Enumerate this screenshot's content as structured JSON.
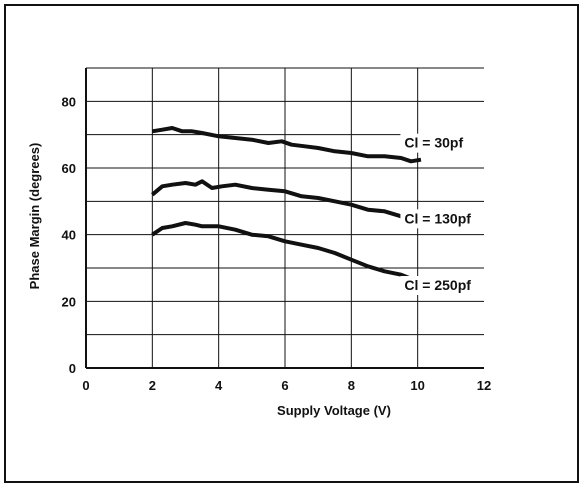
{
  "chart_data": {
    "type": "line",
    "title": "",
    "xlabel": "Supply Voltage (V)",
    "ylabel": "Phase Margin (degrees)",
    "xlim": [
      0,
      12
    ],
    "ylim": [
      0,
      90
    ],
    "xticks": [
      0,
      2,
      4,
      6,
      8,
      10,
      12
    ],
    "yticks": [
      0,
      20,
      40,
      60,
      80
    ],
    "grid": true,
    "series": [
      {
        "name": "Cl = 30pf",
        "x": [
          2.0,
          2.3,
          2.6,
          2.9,
          3.2,
          3.5,
          4.0,
          4.5,
          5.0,
          5.5,
          5.9,
          6.2,
          6.6,
          7.0,
          7.5,
          8.0,
          8.5,
          9.0,
          9.5,
          9.8,
          10.1
        ],
        "y": [
          71,
          71.5,
          72,
          71,
          71,
          70.5,
          69.5,
          69,
          68.5,
          67.5,
          68,
          67,
          66.5,
          66,
          65,
          64.5,
          63.5,
          63.5,
          63,
          62,
          62.5
        ]
      },
      {
        "name": "Cl = 130pf",
        "x": [
          2.0,
          2.3,
          2.6,
          3.0,
          3.3,
          3.5,
          3.8,
          4.1,
          4.5,
          5.0,
          5.5,
          6.0,
          6.5,
          7.0,
          7.5,
          8.0,
          8.5,
          9.0,
          9.5,
          10.0,
          10.1
        ],
        "y": [
          52,
          54.5,
          55,
          55.5,
          55,
          56,
          54,
          54.5,
          55,
          54,
          53.5,
          53,
          51.5,
          51,
          50,
          49,
          47.5,
          47,
          45.5,
          44.5,
          44
        ]
      },
      {
        "name": "Cl = 250pf",
        "x": [
          2.0,
          2.3,
          2.6,
          3.0,
          3.3,
          3.5,
          4.0,
          4.5,
          5.0,
          5.5,
          6.0,
          6.5,
          7.0,
          7.5,
          8.0,
          8.5,
          9.0,
          9.5,
          10.0,
          10.1
        ],
        "y": [
          40,
          42,
          42.5,
          43.5,
          43,
          42.5,
          42.5,
          41.5,
          40,
          39.5,
          38,
          37,
          36,
          34.5,
          32.5,
          30.5,
          29,
          28,
          26,
          24
        ]
      }
    ]
  }
}
